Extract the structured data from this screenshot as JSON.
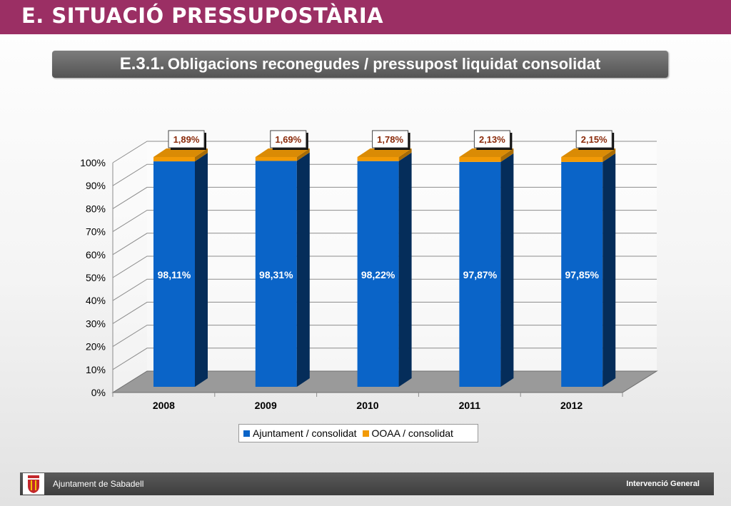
{
  "header": {
    "title": "E. SITUACIÓ PRESSUPOSTÀRIA"
  },
  "subtitle": {
    "number": "E.3.1.",
    "text": "Obligacions reconegudes / pressupost liquidat consolidat"
  },
  "chart_data": {
    "type": "bar",
    "stacked": true,
    "three_d": true,
    "categories": [
      "2008",
      "2009",
      "2010",
      "2011",
      "2012"
    ],
    "series": [
      {
        "name": "Ajuntament / consolidat",
        "values": [
          98.11,
          98.31,
          98.22,
          97.87,
          97.85
        ],
        "labels": [
          "98,11%",
          "98,31%",
          "98,22%",
          "97,87%",
          "97,85%"
        ],
        "color": "#0a64c8"
      },
      {
        "name": "OOAA / consolidat",
        "values": [
          1.89,
          1.69,
          1.78,
          2.13,
          2.15
        ],
        "labels": [
          "1,89%",
          "1,69%",
          "1,78%",
          "2,13%",
          "2,15%"
        ],
        "color": "#f29a06"
      }
    ],
    "yticks": [
      "0%",
      "10%",
      "20%",
      "30%",
      "40%",
      "50%",
      "60%",
      "70%",
      "80%",
      "90%",
      "100%"
    ],
    "ylim": [
      0,
      100
    ],
    "grid": true,
    "legend_position": "bottom",
    "title": "",
    "xlabel": "",
    "ylabel": ""
  },
  "footer": {
    "left_text": "Ajuntament de Sabadell",
    "right_text": "Intervenció General"
  },
  "colors": {
    "header_bg": "#9b2f64",
    "subtitle_bg": "#666666",
    "footer_bg": "#4a4a4a",
    "floor": "#9a9a9a"
  }
}
